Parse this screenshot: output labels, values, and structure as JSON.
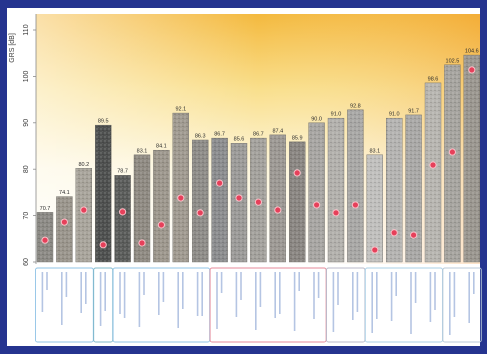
{
  "chart_data": {
    "type": "bar",
    "title": "",
    "xlabel": "",
    "ylabel": "GRS [dB]",
    "ylim": [
      60,
      110
    ],
    "yticks": [
      60,
      70,
      80,
      90,
      100,
      110
    ],
    "grid": false,
    "series": [
      {
        "style": "bar",
        "values": [
          70.7,
          74.1,
          80.2,
          89.5,
          78.7,
          83.1,
          84.1,
          92.1,
          86.3,
          86.7,
          85.6,
          86.7,
          87.4,
          85.9,
          90.0,
          91.0,
          92.8,
          83.1,
          91.0,
          91.7,
          98.6,
          102.5,
          104.6
        ]
      },
      {
        "style": "dot",
        "values": [
          64.7,
          68.6,
          71.2,
          63.7,
          70.8,
          64.1,
          68.0,
          73.8,
          70.6,
          77.0,
          73.8,
          72.9,
          71.2,
          79.2,
          72.3,
          70.6,
          72.3,
          62.6,
          66.3,
          65.8,
          80.9,
          83.7,
          101.4
        ]
      }
    ],
    "bar_colors": [
      "#8c8a85",
      "#9a958c",
      "#a8a49b",
      "#4e504f",
      "#5a5c5a",
      "#8f8a82",
      "#9d978d",
      "#a09a90",
      "#8e8c88",
      "#8b8c8e",
      "#9b9a98",
      "#a3a19c",
      "#9c9893",
      "#8a8682",
      "#a7a5a2",
      "#b2b0ac",
      "#a8a7a5",
      "#c0bfbd",
      "#b4b3b1",
      "#a9a8a6",
      "#b7b5b0",
      "#a6a49f",
      "#9a968f"
    ],
    "dot_color": "#e6405a",
    "frame_color": "#25348f"
  }
}
